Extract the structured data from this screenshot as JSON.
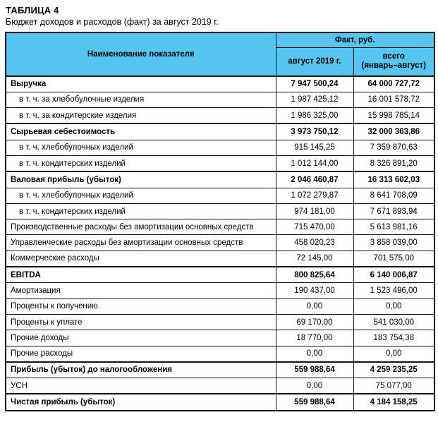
{
  "doc": {
    "label": "ТАБЛИЦА 4",
    "subtitle": "Бюджет доходов и расходов (факт) за август 2019 г."
  },
  "colors": {
    "header_bg": "#56C5F0",
    "border": "#141414"
  },
  "table": {
    "col1_header": "Наименование показателя",
    "group_header": "Факт, руб.",
    "col2_header": "август 2019 г.",
    "col3_header": "всего\n(январь–август)",
    "rows": [
      {
        "name": "Выручка",
        "aug": "7 947 500,24",
        "total": "64 000 727,72",
        "kind": "section"
      },
      {
        "name": "в т. ч. за хлебобулочные изделия",
        "aug": "1 987 425,12",
        "total": "16 001 578,72",
        "kind": "sub"
      },
      {
        "name": "в т. ч. за кондитерские изделия",
        "aug": "1 986 325,00",
        "total": "15 998 785,14",
        "kind": "sub"
      },
      {
        "name": "Сырьевая себестоимость",
        "aug": "3 973 750,12",
        "total": "32 000 363,86",
        "kind": "section"
      },
      {
        "name": "в т. ч. хлебобулочных изделий",
        "aug": "915 145,25",
        "total": "7 359 870,63",
        "kind": "sub"
      },
      {
        "name": "в т. ч. кондитерских изделий",
        "aug": "1 012 144,00",
        "total": "8 326 891,20",
        "kind": "sub"
      },
      {
        "name": "Валовая прибыль (убыток)",
        "aug": "2 046 460,87",
        "total": "16 313 602,03",
        "kind": "section"
      },
      {
        "name": "в т. ч. хлебобулочных изделий",
        "aug": "1 072 279,87",
        "total": "8 641 708,09",
        "kind": "sub"
      },
      {
        "name": "в т. ч. кондитерских изделий",
        "aug": "974 181,00",
        "total": "7 671 893,94",
        "kind": "sub"
      },
      {
        "name": "Производственные расходы без амортизации основных средств",
        "aug": "715 470,00",
        "total": "5 613 981,16",
        "kind": "plain"
      },
      {
        "name": "Управленческие расходы без амортизации основных средств",
        "aug": "458 020,23",
        "total": "3 858 039,00",
        "kind": "plain"
      },
      {
        "name": "Коммерческие расходы",
        "aug": "72 145,00",
        "total": "701 575,00",
        "kind": "plain"
      },
      {
        "name": "EBITDA",
        "aug": "800 825,64",
        "total": "6 140 006,87",
        "kind": "section"
      },
      {
        "name": "Амортизация",
        "aug": "190 437,00",
        "total": "1 523 496,00",
        "kind": "plain"
      },
      {
        "name": "Проценты к получению",
        "aug": "0,00",
        "total": "0,00",
        "kind": "plain"
      },
      {
        "name": "Проценты к уплате",
        "aug": "69 170,00",
        "total": "541 030,00",
        "kind": "plain"
      },
      {
        "name": "Прочие доходы",
        "aug": "18 770,00",
        "total": "183 754,38",
        "kind": "plain"
      },
      {
        "name": "Прочие расходы",
        "aug": "0,00",
        "total": "0,00",
        "kind": "plain"
      },
      {
        "name": "Прибыль (убыток) до налогообложения",
        "aug": "559 988,64",
        "total": "4 259 235,25",
        "kind": "section"
      },
      {
        "name": "УСН",
        "aug": "0,00",
        "total": "75 077,00",
        "kind": "plain"
      },
      {
        "name": "Чистая прибыль (убыток)",
        "aug": "559 988,64",
        "total": "4 184 158,25",
        "kind": "section"
      }
    ]
  }
}
